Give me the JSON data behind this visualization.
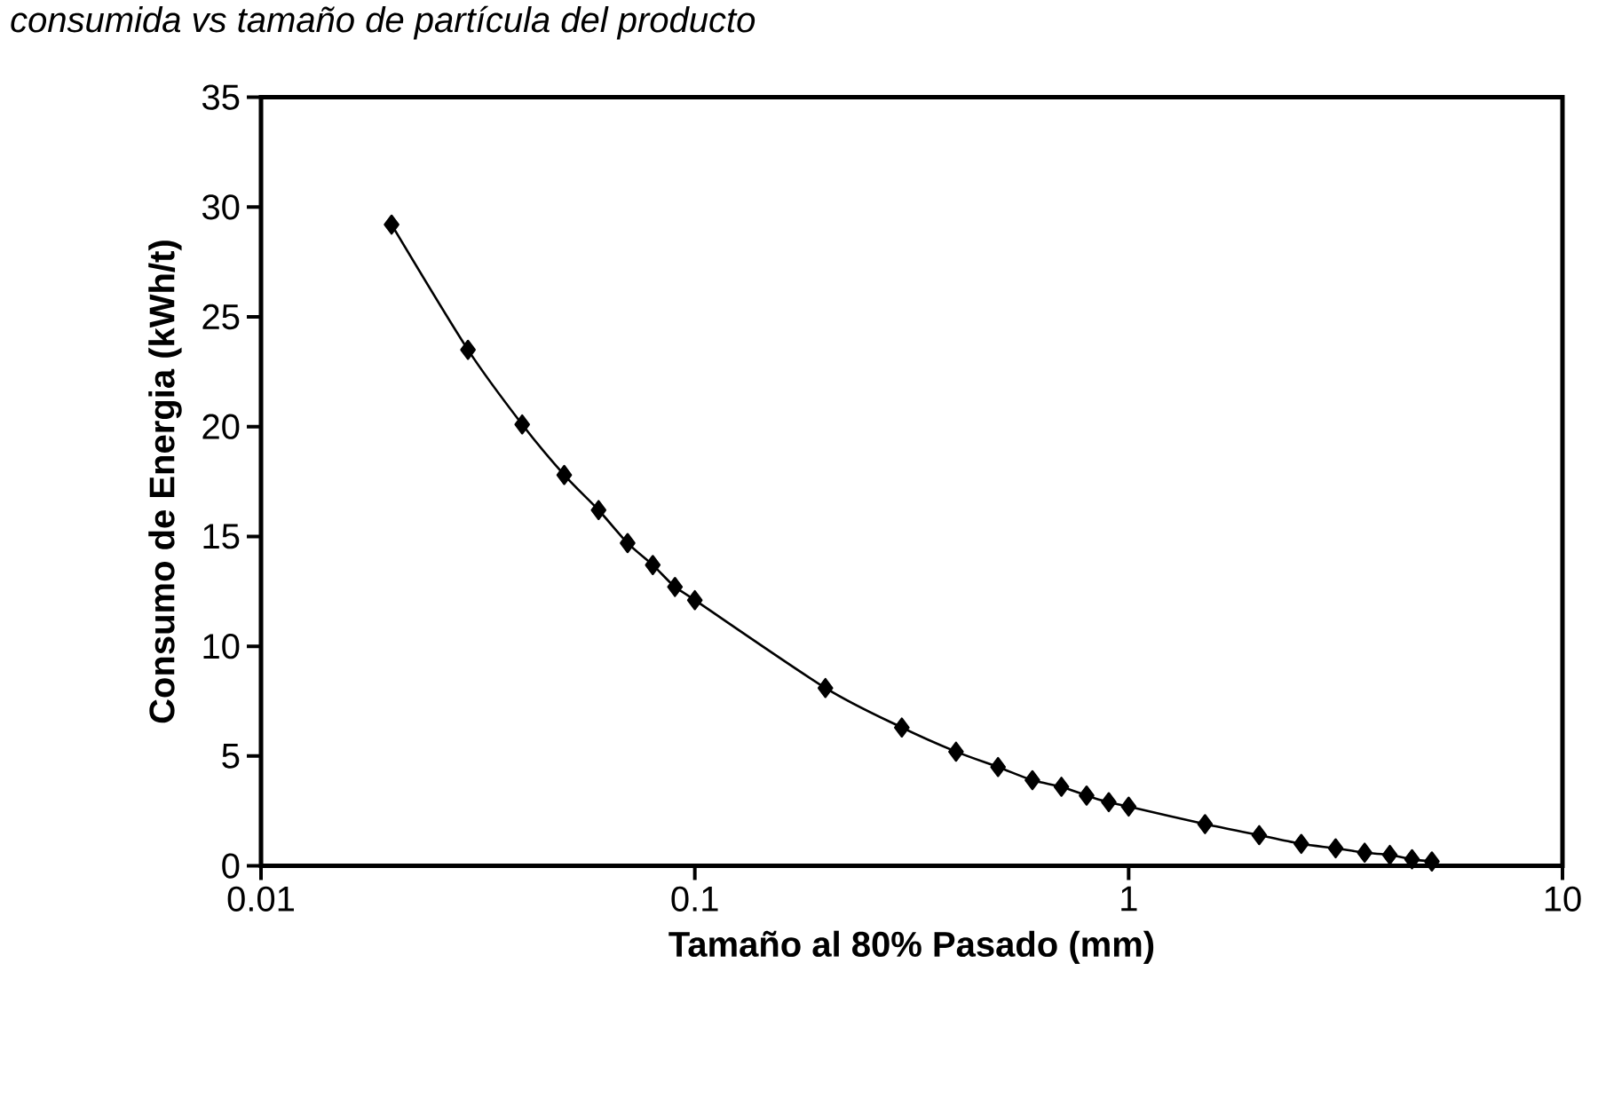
{
  "chart_data": {
    "type": "line",
    "title": "consumida vs tamaño de partícula del producto",
    "xlabel": "Tamaño al 80% Pasado (mm)",
    "ylabel": "Consumo de Energia (kWh/t)",
    "x": [
      0.02,
      0.03,
      0.04,
      0.05,
      0.06,
      0.07,
      0.08,
      0.09,
      0.1,
      0.2,
      0.3,
      0.4,
      0.5,
      0.6,
      0.7,
      0.8,
      0.9,
      1.0,
      1.5,
      2,
      2.5,
      3,
      3.5,
      4,
      4.5,
      5
    ],
    "values": [
      29.2,
      23.5,
      20.1,
      17.8,
      16.2,
      14.7,
      13.7,
      12.7,
      12.1,
      8.1,
      6.3,
      5.2,
      4.5,
      3.9,
      3.6,
      3.2,
      2.9,
      2.7,
      1.9,
      1.4,
      1.0,
      0.8,
      0.6,
      0.5,
      0.3,
      0.2
    ],
    "color": "#000000",
    "marker": "diamond",
    "line_style": "solid",
    "log": "x",
    "xlim": [
      0.01,
      10
    ],
    "xticks": [
      0.01,
      0.1,
      1,
      10
    ],
    "ylim": [
      0,
      35
    ],
    "yticks": [
      0,
      5,
      10,
      15,
      20,
      25,
      30,
      35
    ]
  }
}
